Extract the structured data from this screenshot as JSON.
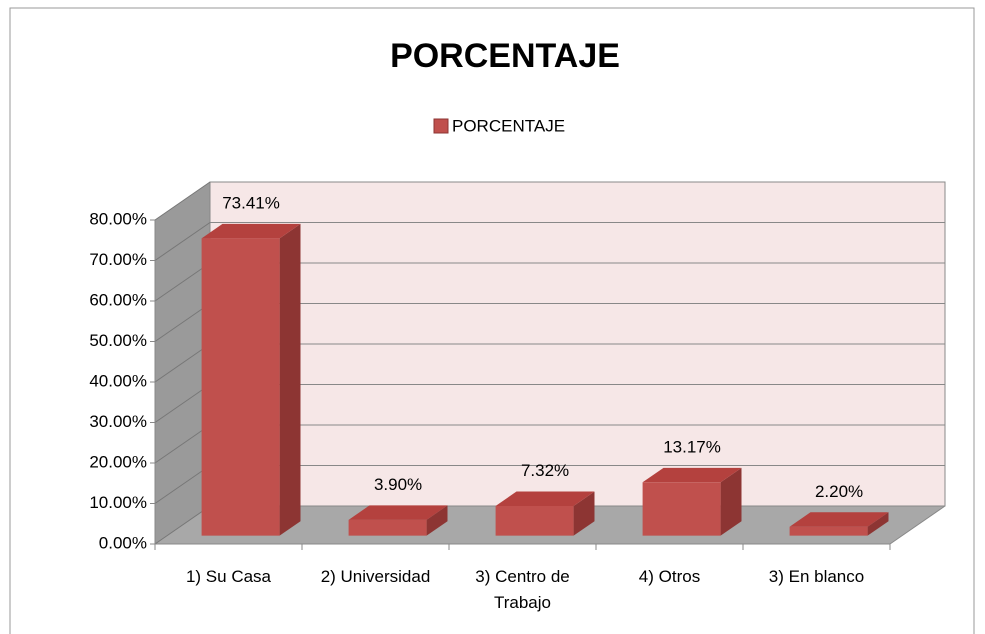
{
  "chart_data": {
    "type": "bar3d",
    "title": "PORCENTAJE",
    "categories": [
      "1) Su Casa",
      "2) Universidad",
      "3) Centro de Trabajo",
      "4) Otros",
      "3) En blanco"
    ],
    "series": [
      {
        "name": "PORCENTAJE",
        "color": "#c0504d",
        "values": [
          73.41,
          3.9,
          7.32,
          13.17,
          2.2
        ],
        "value_labels": [
          "73.41%",
          "3.90%",
          "7.32%",
          "13.17%",
          "2.20%"
        ]
      }
    ],
    "ylim": [
      0,
      80
    ],
    "yticks": [
      {
        "value": 0,
        "label": "0.00%"
      },
      {
        "value": 10,
        "label": "10.00%"
      },
      {
        "value": 20,
        "label": "20.00%"
      },
      {
        "value": 30,
        "label": "30.00%"
      },
      {
        "value": 40,
        "label": "40.00%"
      },
      {
        "value": 50,
        "label": "50.00%"
      },
      {
        "value": 60,
        "label": "60.00%"
      },
      {
        "value": 70,
        "label": "70.00%"
      },
      {
        "value": 80,
        "label": "80.00%"
      }
    ],
    "grid": true,
    "legend": "top"
  }
}
